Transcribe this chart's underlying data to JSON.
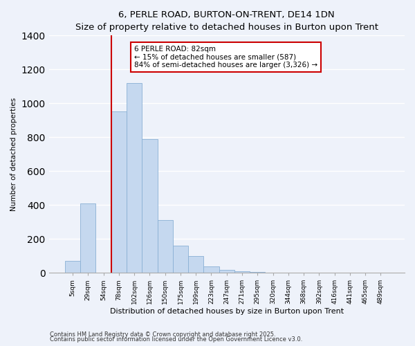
{
  "title": "6, PERLE ROAD, BURTON-ON-TRENT, DE14 1DN",
  "subtitle": "Size of property relative to detached houses in Burton upon Trent",
  "xlabel": "Distribution of detached houses by size in Burton upon Trent",
  "ylabel": "Number of detached properties",
  "bar_color": "#c5d8ef",
  "bar_edge_color": "#8ab0d4",
  "categories": [
    "5sqm",
    "29sqm",
    "54sqm",
    "78sqm",
    "102sqm",
    "126sqm",
    "150sqm",
    "175sqm",
    "199sqm",
    "223sqm",
    "247sqm",
    "271sqm",
    "295sqm",
    "320sqm",
    "344sqm",
    "368sqm",
    "392sqm",
    "416sqm",
    "441sqm",
    "465sqm",
    "489sqm"
  ],
  "values": [
    70,
    410,
    0,
    950,
    1120,
    790,
    310,
    160,
    100,
    35,
    15,
    10,
    3,
    0,
    0,
    0,
    0,
    0,
    0,
    0,
    0
  ],
  "ylim": [
    0,
    1400
  ],
  "yticks": [
    0,
    200,
    400,
    600,
    800,
    1000,
    1200,
    1400
  ],
  "vline_x_index": 3,
  "vline_color": "#cc0000",
  "annotation_title": "6 PERLE ROAD: 82sqm",
  "annotation_line1": "← 15% of detached houses are smaller (587)",
  "annotation_line2": "84% of semi-detached houses are larger (3,326) →",
  "annotation_box_color": "#ffffff",
  "annotation_box_edge": "#cc0000",
  "footnote1": "Contains HM Land Registry data © Crown copyright and database right 2025.",
  "footnote2": "Contains public sector information licensed under the Open Government Licence v3.0.",
  "bg_color": "#eef2fa",
  "grid_color": "#ffffff"
}
